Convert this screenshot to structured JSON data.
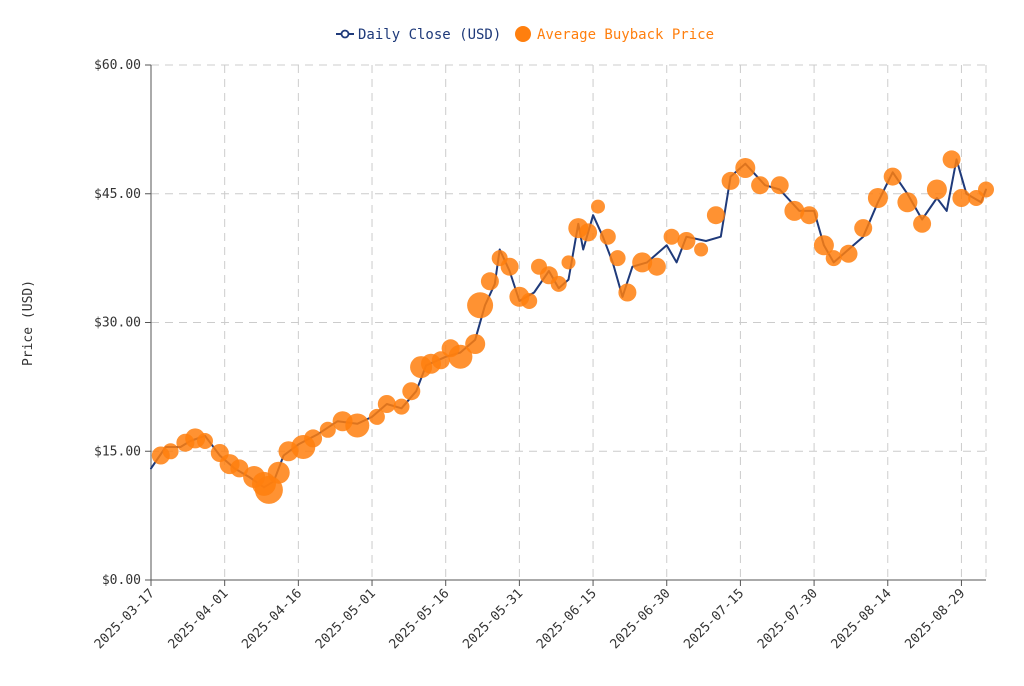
{
  "chart_data": {
    "type": "line",
    "title": "",
    "xlabel": "",
    "ylabel": "Price (USD)",
    "ylim": [
      0,
      60
    ],
    "y_ticks": [
      "$0.00",
      "$15.00",
      "$30.00",
      "$45.00",
      "$60.00"
    ],
    "x_ticks": [
      "2025-03-17",
      "2025-04-01",
      "2025-04-16",
      "2025-05-01",
      "2025-05-16",
      "2025-05-31",
      "2025-06-15",
      "2025-06-30",
      "2025-07-15",
      "2025-07-30",
      "2025-08-14",
      "2025-08-29"
    ],
    "x_range": [
      "2025-03-17",
      "2025-09-03"
    ],
    "grid": true,
    "legend_position": "top-center",
    "colors": {
      "line": "#1f3a7a",
      "marker": "#ff7f0e"
    },
    "series": [
      {
        "name": "Daily Close (USD)",
        "kind": "line",
        "points": [
          [
            "2025-03-17",
            13.0
          ],
          [
            "2025-03-20",
            15.5
          ],
          [
            "2025-03-23",
            15.5
          ],
          [
            "2025-03-25",
            16.2
          ],
          [
            "2025-03-28",
            16.8
          ],
          [
            "2025-03-31",
            14.5
          ],
          [
            "2025-04-03",
            13.0
          ],
          [
            "2025-04-06",
            12.0
          ],
          [
            "2025-04-09",
            10.8
          ],
          [
            "2025-04-11",
            11.5
          ],
          [
            "2025-04-13",
            14.5
          ],
          [
            "2025-04-16",
            15.8
          ],
          [
            "2025-04-20",
            17.0
          ],
          [
            "2025-04-24",
            18.5
          ],
          [
            "2025-04-28",
            18.2
          ],
          [
            "2025-05-01",
            19.0
          ],
          [
            "2025-05-04",
            20.5
          ],
          [
            "2025-05-07",
            20.0
          ],
          [
            "2025-05-10",
            22.0
          ],
          [
            "2025-05-12",
            25.0
          ],
          [
            "2025-05-16",
            26.0
          ],
          [
            "2025-05-19",
            26.5
          ],
          [
            "2025-05-22",
            28.0
          ],
          [
            "2025-05-24",
            32.0
          ],
          [
            "2025-05-26",
            34.5
          ],
          [
            "2025-05-27",
            38.5
          ],
          [
            "2025-05-29",
            36.0
          ],
          [
            "2025-05-31",
            32.5
          ],
          [
            "2025-06-03",
            33.5
          ],
          [
            "2025-06-06",
            36.0
          ],
          [
            "2025-06-08",
            34.0
          ],
          [
            "2025-06-10",
            35.0
          ],
          [
            "2025-06-12",
            41.5
          ],
          [
            "2025-06-13",
            38.5
          ],
          [
            "2025-06-15",
            42.5
          ],
          [
            "2025-06-17",
            40.0
          ],
          [
            "2025-06-19",
            37.0
          ],
          [
            "2025-06-21",
            33.0
          ],
          [
            "2025-06-23",
            36.5
          ],
          [
            "2025-06-26",
            37.0
          ],
          [
            "2025-06-30",
            39.0
          ],
          [
            "2025-07-02",
            37.0
          ],
          [
            "2025-07-04",
            40.0
          ],
          [
            "2025-07-08",
            39.5
          ],
          [
            "2025-07-11",
            40.0
          ],
          [
            "2025-07-13",
            47.0
          ],
          [
            "2025-07-16",
            48.5
          ],
          [
            "2025-07-20",
            46.0
          ],
          [
            "2025-07-23",
            45.5
          ],
          [
            "2025-07-27",
            43.0
          ],
          [
            "2025-07-30",
            43.0
          ],
          [
            "2025-08-01",
            39.0
          ],
          [
            "2025-08-03",
            37.0
          ],
          [
            "2025-08-06",
            38.5
          ],
          [
            "2025-08-09",
            40.0
          ],
          [
            "2025-08-12",
            44.0
          ],
          [
            "2025-08-15",
            47.5
          ],
          [
            "2025-08-18",
            45.0
          ],
          [
            "2025-08-21",
            42.0
          ],
          [
            "2025-08-24",
            44.5
          ],
          [
            "2025-08-26",
            43.0
          ],
          [
            "2025-08-28",
            49.0
          ],
          [
            "2025-08-30",
            45.0
          ],
          [
            "2025-09-02",
            44.0
          ],
          [
            "2025-09-03",
            45.5
          ]
        ]
      },
      {
        "name": "Average Buyback Price",
        "kind": "scatter",
        "points": [
          [
            "2025-03-19",
            14.5,
            9
          ],
          [
            "2025-03-21",
            15.0,
            8
          ],
          [
            "2025-03-24",
            16.0,
            9
          ],
          [
            "2025-03-26",
            16.5,
            10
          ],
          [
            "2025-03-28",
            16.2,
            8
          ],
          [
            "2025-03-31",
            14.8,
            9
          ],
          [
            "2025-04-02",
            13.5,
            10
          ],
          [
            "2025-04-04",
            13.0,
            9
          ],
          [
            "2025-04-07",
            12.0,
            11
          ],
          [
            "2025-04-09",
            11.2,
            12
          ],
          [
            "2025-04-10",
            10.5,
            14
          ],
          [
            "2025-04-12",
            12.5,
            11
          ],
          [
            "2025-04-14",
            15.0,
            10
          ],
          [
            "2025-04-17",
            15.5,
            12
          ],
          [
            "2025-04-19",
            16.5,
            9
          ],
          [
            "2025-04-22",
            17.5,
            8
          ],
          [
            "2025-04-25",
            18.5,
            10
          ],
          [
            "2025-04-28",
            18.0,
            12
          ],
          [
            "2025-05-02",
            19.0,
            8
          ],
          [
            "2025-05-04",
            20.5,
            9
          ],
          [
            "2025-05-07",
            20.2,
            8
          ],
          [
            "2025-05-09",
            22.0,
            9
          ],
          [
            "2025-05-11",
            24.8,
            11
          ],
          [
            "2025-05-13",
            25.2,
            10
          ],
          [
            "2025-05-15",
            25.6,
            9
          ],
          [
            "2025-05-17",
            27.0,
            9
          ],
          [
            "2025-05-19",
            26.0,
            12
          ],
          [
            "2025-05-22",
            27.5,
            10
          ],
          [
            "2025-05-23",
            32.0,
            13
          ],
          [
            "2025-05-25",
            34.8,
            9
          ],
          [
            "2025-05-27",
            37.5,
            8
          ],
          [
            "2025-05-29",
            36.5,
            9
          ],
          [
            "2025-05-31",
            33.0,
            10
          ],
          [
            "2025-06-02",
            32.5,
            8
          ],
          [
            "2025-06-04",
            36.5,
            8
          ],
          [
            "2025-06-06",
            35.5,
            9
          ],
          [
            "2025-06-08",
            34.5,
            8
          ],
          [
            "2025-06-10",
            37.0,
            7
          ],
          [
            "2025-06-12",
            41.0,
            10
          ],
          [
            "2025-06-14",
            40.5,
            9
          ],
          [
            "2025-06-16",
            43.5,
            7
          ],
          [
            "2025-06-18",
            40.0,
            8
          ],
          [
            "2025-06-20",
            37.5,
            8
          ],
          [
            "2025-06-22",
            33.5,
            9
          ],
          [
            "2025-06-25",
            37.0,
            10
          ],
          [
            "2025-06-28",
            36.5,
            9
          ],
          [
            "2025-07-01",
            40.0,
            8
          ],
          [
            "2025-07-04",
            39.5,
            9
          ],
          [
            "2025-07-07",
            38.5,
            7
          ],
          [
            "2025-07-10",
            42.5,
            9
          ],
          [
            "2025-07-13",
            46.5,
            9
          ],
          [
            "2025-07-16",
            48.0,
            10
          ],
          [
            "2025-07-19",
            46.0,
            9
          ],
          [
            "2025-07-23",
            46.0,
            9
          ],
          [
            "2025-07-26",
            43.0,
            10
          ],
          [
            "2025-07-29",
            42.5,
            9
          ],
          [
            "2025-08-01",
            39.0,
            10
          ],
          [
            "2025-08-03",
            37.5,
            8
          ],
          [
            "2025-08-06",
            38.0,
            9
          ],
          [
            "2025-08-09",
            41.0,
            9
          ],
          [
            "2025-08-12",
            44.5,
            10
          ],
          [
            "2025-08-15",
            47.0,
            9
          ],
          [
            "2025-08-18",
            44.0,
            10
          ],
          [
            "2025-08-21",
            41.5,
            9
          ],
          [
            "2025-08-24",
            45.5,
            10
          ],
          [
            "2025-08-27",
            49.0,
            9
          ],
          [
            "2025-08-29",
            44.5,
            9
          ],
          [
            "2025-09-01",
            44.5,
            8
          ],
          [
            "2025-09-03",
            45.5,
            8
          ]
        ]
      }
    ]
  }
}
